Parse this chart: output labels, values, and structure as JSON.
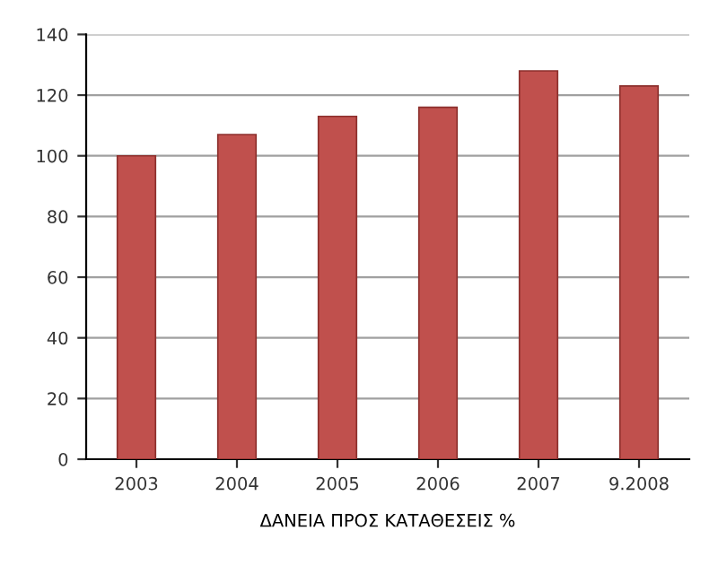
{
  "chart_data": {
    "type": "bar",
    "xlabel": "ΔΑΝΕΙΑ ΠΡΟΣ ΚΑΤΑΘΕΣΕΙΣ %",
    "categories": [
      "2003",
      "2004",
      "2005",
      "2006",
      "2007",
      "9.2008"
    ],
    "values": [
      100,
      107,
      113,
      116,
      128,
      123
    ],
    "color": "#c0504d",
    "ylim": [
      0,
      140
    ],
    "yticks": [
      0,
      20,
      40,
      60,
      80,
      100,
      120,
      140
    ],
    "grid": "y"
  }
}
